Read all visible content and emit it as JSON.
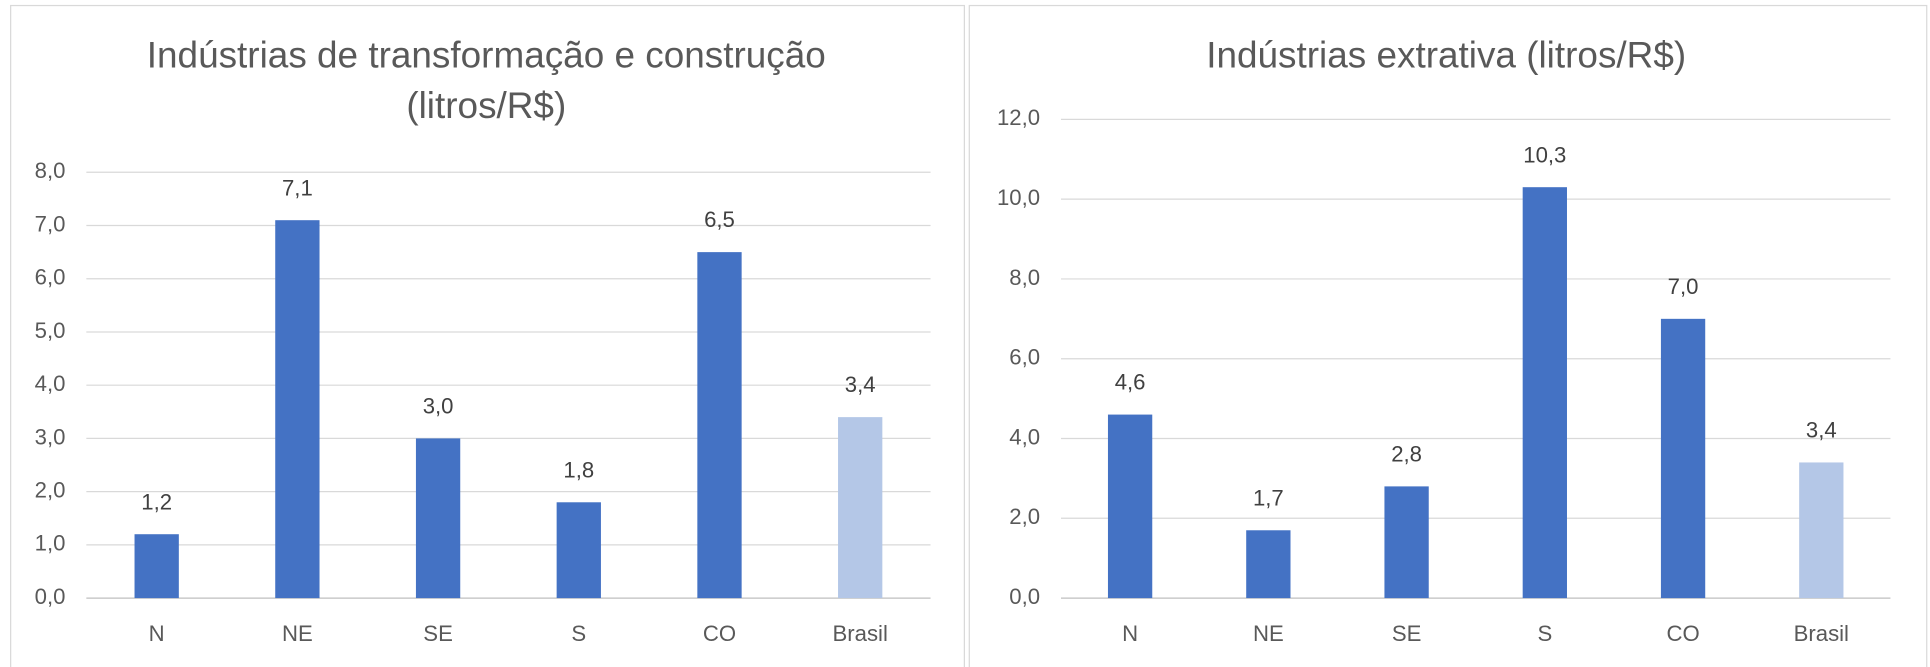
{
  "chart_data": [
    {
      "type": "bar",
      "title": [
        "Indústrias de transformação e construção",
        "(litros/R$)"
      ],
      "categories": [
        "N",
        "NE",
        "SE",
        "S",
        "CO",
        "Brasil"
      ],
      "values": [
        1.2,
        7.1,
        3.0,
        1.8,
        6.5,
        3.4
      ],
      "value_labels": [
        "1,2",
        "7,1",
        "3,0",
        "1,8",
        "6,5",
        "3,4"
      ],
      "colors": [
        "#4472c4",
        "#4472c4",
        "#4472c4",
        "#4472c4",
        "#4472c4",
        "#b4c7e7"
      ],
      "ylim": [
        0,
        8
      ],
      "yticks": [
        {
          "value": 0,
          "label": "0,0"
        },
        {
          "value": 1,
          "label": "1,0"
        },
        {
          "value": 2,
          "label": "2,0"
        },
        {
          "value": 3,
          "label": "3,0"
        },
        {
          "value": 4,
          "label": "4,0"
        },
        {
          "value": 5,
          "label": "5,0"
        },
        {
          "value": 6,
          "label": "6,0"
        },
        {
          "value": 7,
          "label": "7,0"
        },
        {
          "value": 8,
          "label": "8,0"
        }
      ],
      "grid": true
    },
    {
      "type": "bar",
      "title": [
        "Indústrias extrativa (litros/R$)"
      ],
      "categories": [
        "N",
        "NE",
        "SE",
        "S",
        "CO",
        "Brasil"
      ],
      "values": [
        4.6,
        1.7,
        2.8,
        10.3,
        7.0,
        3.4
      ],
      "value_labels": [
        "4,6",
        "1,7",
        "2,8",
        "10,3",
        "7,0",
        "3,4"
      ],
      "colors": [
        "#4472c4",
        "#4472c4",
        "#4472c4",
        "#4472c4",
        "#4472c4",
        "#b4c7e7"
      ],
      "ylim": [
        0,
        12
      ],
      "yticks": [
        {
          "value": 0,
          "label": "0,0"
        },
        {
          "value": 2,
          "label": "2,0"
        },
        {
          "value": 4,
          "label": "4,0"
        },
        {
          "value": 6,
          "label": "6,0"
        },
        {
          "value": 8,
          "label": "8,0"
        },
        {
          "value": 10,
          "label": "10,0"
        },
        {
          "value": 12,
          "label": "12,0"
        }
      ],
      "grid": true
    }
  ]
}
